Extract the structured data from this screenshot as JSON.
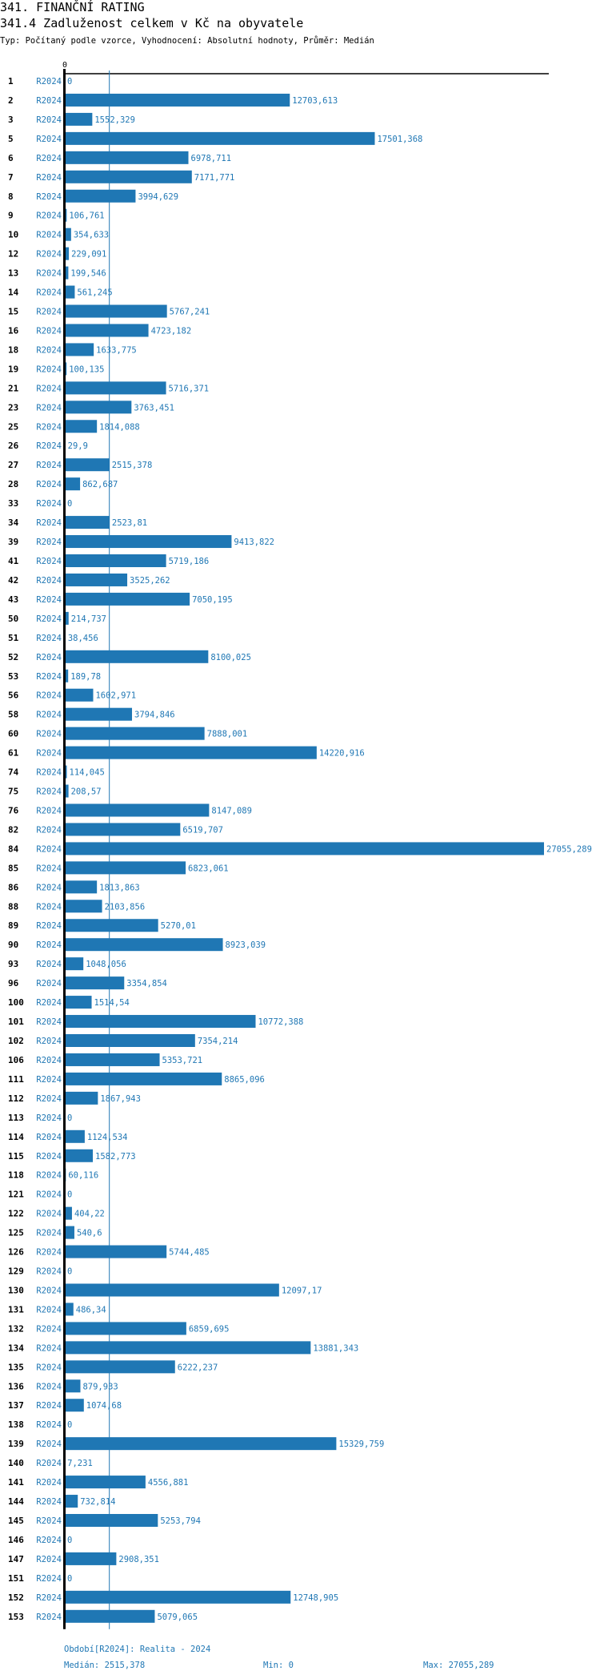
{
  "header": {
    "title": "341. FINANČNÍ RATING",
    "subtitle": "341.4 Zadluženost celkem v Kč na obyvatele",
    "description": "Typ: Počítaný podle vzorce, Vyhodnocení: Absolutní hodnoty, Průměr: Medián"
  },
  "colors": {
    "bar": "#1f77b4",
    "text_accent": "#1f77b4",
    "axis": "#000000"
  },
  "chart_data": {
    "type": "bar",
    "orientation": "horizontal",
    "title": "341.4 Zadluženost celkem v Kč na obyvatele",
    "xlabel": "",
    "ylabel": "",
    "x_tick_labels": [
      "0"
    ],
    "xlim": [
      0,
      27055.289
    ],
    "grid": false,
    "reference_line": {
      "name": "Medián",
      "value": 2515.378
    },
    "period": "R2024",
    "categories": [
      "1",
      "2",
      "3",
      "5",
      "6",
      "7",
      "8",
      "9",
      "10",
      "12",
      "13",
      "14",
      "15",
      "16",
      "18",
      "19",
      "21",
      "23",
      "25",
      "26",
      "27",
      "28",
      "33",
      "34",
      "39",
      "41",
      "42",
      "43",
      "50",
      "51",
      "52",
      "53",
      "56",
      "58",
      "60",
      "61",
      "74",
      "75",
      "76",
      "82",
      "84",
      "85",
      "86",
      "88",
      "89",
      "90",
      "93",
      "96",
      "100",
      "101",
      "102",
      "106",
      "111",
      "112",
      "113",
      "114",
      "115",
      "118",
      "121",
      "122",
      "125",
      "126",
      "129",
      "130",
      "131",
      "132",
      "134",
      "135",
      "136",
      "137",
      "138",
      "139",
      "140",
      "141",
      "144",
      "145",
      "146",
      "147",
      "151",
      "152",
      "153"
    ],
    "values": [
      0,
      12703.613,
      1552.329,
      17501.368,
      6978.711,
      7171.771,
      3994.629,
      106.761,
      354.633,
      229.091,
      199.546,
      561.245,
      5767.241,
      4723.182,
      1633.775,
      100.135,
      5716.371,
      3763.451,
      1814.088,
      29.9,
      2515.378,
      862.687,
      0,
      2523.81,
      9413.822,
      5719.186,
      3525.262,
      7050.195,
      214.737,
      38.456,
      8100.025,
      189.78,
      1602.971,
      3794.846,
      7888.001,
      14220.916,
      114.045,
      208.57,
      8147.089,
      6519.707,
      27055.289,
      6823.061,
      1813.863,
      2103.856,
      5270.01,
      8923.039,
      1048.056,
      3354.854,
      1514.54,
      10772.388,
      7354.214,
      5353.721,
      8865.096,
      1867.943,
      0,
      1124.534,
      1582.773,
      60.116,
      0,
      404.22,
      540.6,
      5744.485,
      0,
      12097.17,
      486.34,
      6859.695,
      13881.343,
      6222.237,
      879.933,
      1074.68,
      0,
      15329.759,
      7.231,
      4556.881,
      732.814,
      5253.794,
      0,
      2908.351,
      0,
      12748.905,
      5079.065
    ],
    "value_labels": [
      "0",
      "12703,613",
      "1552,329",
      "17501,368",
      "6978,711",
      "7171,771",
      "3994,629",
      "106,761",
      "354,633",
      "229,091",
      "199,546",
      "561,245",
      "5767,241",
      "4723,182",
      "1633,775",
      "100,135",
      "5716,371",
      "3763,451",
      "1814,088",
      "29,9",
      "2515,378",
      "862,687",
      "0",
      "2523,81",
      "9413,822",
      "5719,186",
      "3525,262",
      "7050,195",
      "214,737",
      "38,456",
      "8100,025",
      "189,78",
      "1602,971",
      "3794,846",
      "7888,001",
      "14220,916",
      "114,045",
      "208,57",
      "8147,089",
      "6519,707",
      "27055,289",
      "6823,061",
      "1813,863",
      "2103,856",
      "5270,01",
      "8923,039",
      "1048,056",
      "3354,854",
      "1514,54",
      "10772,388",
      "7354,214",
      "5353,721",
      "8865,096",
      "1867,943",
      "0",
      "1124,534",
      "1582,773",
      "60,116",
      "0",
      "404,22",
      "540,6",
      "5744,485",
      "0",
      "12097,17",
      "486,34",
      "6859,695",
      "13881,343",
      "6222,237",
      "879,933",
      "1074,68",
      "0",
      "15329,759",
      "7,231",
      "4556,881",
      "732,814",
      "5253,794",
      "0",
      "2908,351",
      "0",
      "12748,905",
      "5079,065"
    ]
  },
  "footer": {
    "period_note": "Období[R2024]: Realita - 2024",
    "median": "Medián: 2515,378",
    "min": "Min: 0",
    "max": "Max: 27055,289"
  }
}
